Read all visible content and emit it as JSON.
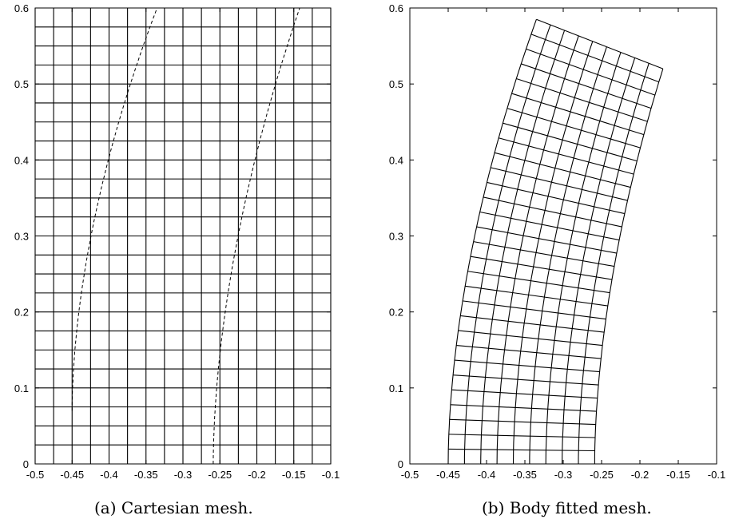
{
  "captions": {
    "a": "(a) Cartesian mesh.",
    "b": "(b) Body fitted mesh."
  },
  "chart_data": [
    {
      "type": "diagram-mesh",
      "name": "cartesian",
      "xlim": [
        -0.5,
        -0.1
      ],
      "ylim": [
        0,
        0.6
      ],
      "x_ticks": [
        -0.5,
        -0.45,
        -0.4,
        -0.35,
        -0.3,
        -0.25,
        -0.2,
        -0.15,
        -0.1
      ],
      "x_tick_labels": [
        "-0.5",
        "-0.45",
        "-0.4",
        "-0.35",
        "-0.3",
        "-0.25",
        "-0.2",
        "-0.15",
        "-0.1"
      ],
      "y_ticks": [
        0,
        0.1,
        0.2,
        0.3,
        0.4,
        0.5,
        0.6
      ],
      "y_tick_labels": [
        "0",
        "0.1",
        "0.2",
        "0.3",
        "0.4",
        "0.5",
        "0.6"
      ],
      "grid_spacing": 0.025,
      "dashed_boundaries": [
        {
          "x_start": -0.45,
          "x_end": -0.335,
          "y_start": 0.07,
          "y_end": 0.6
        },
        {
          "x_start": -0.259,
          "x_end": -0.142,
          "y_start": 0.0,
          "y_end": 0.6
        }
      ]
    },
    {
      "type": "diagram-mesh",
      "name": "body-fitted",
      "xlim": [
        -0.5,
        -0.1
      ],
      "ylim": [
        0,
        0.6
      ],
      "x_ticks": [
        -0.5,
        -0.45,
        -0.4,
        -0.35,
        -0.3,
        -0.25,
        -0.2,
        -0.15,
        -0.1
      ],
      "x_tick_labels": [
        "-0.5",
        "-0.45",
        "-0.4",
        "-0.35",
        "-0.3",
        "-0.25",
        "-0.2",
        "-0.15",
        "-0.1"
      ],
      "y_ticks": [
        0,
        0.1,
        0.2,
        0.3,
        0.4,
        0.5,
        0.6
      ],
      "y_tick_labels": [
        "0",
        "0.1",
        "0.2",
        "0.3",
        "0.4",
        "0.5",
        "0.6"
      ],
      "inner_edge": {
        "x_bottom": -0.45,
        "x_top": -0.335,
        "y_top": 0.585
      },
      "outer_edge": {
        "x_bottom": -0.259,
        "x_top": -0.17,
        "y_top": 0.52
      },
      "radial_cells": 9,
      "axial_cells": 30
    }
  ]
}
